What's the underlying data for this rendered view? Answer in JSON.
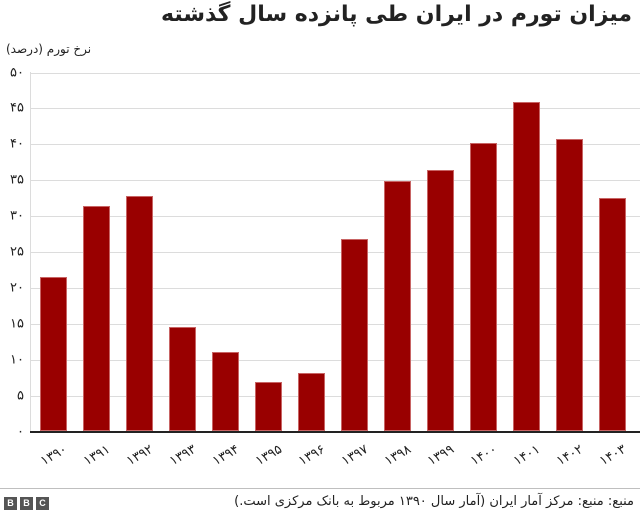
{
  "header": {
    "title": "میزان تورم در ایران طی پانزده سال گذشته",
    "y_axis_label": "نرخ تورم (درصد)"
  },
  "colors": {
    "bar": "#990000",
    "gridline": "#dcdcdc",
    "axis": "#222222"
  },
  "y_ticks": [
    "۵۰",
    "۴۵",
    "۴۰",
    "۳۵",
    "۳۰",
    "۲۵",
    "۲۰",
    "۱۵",
    "۱۰",
    "۵",
    "۰"
  ],
  "x_ticks": [
    "۱۳۹۰",
    "۱۳۹۱",
    "۱۳۹۲",
    "۱۳۹۳",
    "۱۳۹۴",
    "۱۳۹۵",
    "۱۳۹۶",
    "۱۳۹۷",
    "۱۳۹۸",
    "۱۳۹۹",
    "۱۴۰۰",
    "۱۴۰۱",
    "۱۴۰۲",
    "۱۴۰۳"
  ],
  "footer": {
    "source": "منبع: منبع: مرکز آمار ایران (آمار سال ۱۳۹۰ مربوط به بانک مرکزی است.)",
    "logo_letters": [
      "B",
      "B",
      "C"
    ]
  },
  "chart_data": {
    "type": "bar",
    "title": "میزان تورم در ایران طی پانزده سال گذشته",
    "xlabel": "",
    "ylabel": "نرخ تورم (درصد)",
    "categories": [
      "1390",
      "1391",
      "1392",
      "1393",
      "1394",
      "1395",
      "1396",
      "1397",
      "1398",
      "1399",
      "1400",
      "1401",
      "1402",
      "1403"
    ],
    "values": [
      21.5,
      31.5,
      32.8,
      14.6,
      11.1,
      6.9,
      8.2,
      26.9,
      34.9,
      36.4,
      40.2,
      45.9,
      40.7,
      32.5
    ],
    "ylim": [
      0,
      50
    ],
    "yticks": [
      0,
      5,
      10,
      15,
      20,
      25,
      30,
      35,
      40,
      45,
      50
    ],
    "grid": true,
    "legend": null,
    "source": "مرکز آمار ایران (آمار سال ۱۳۹۰ مربوط به بانک مرکزی است.)"
  }
}
